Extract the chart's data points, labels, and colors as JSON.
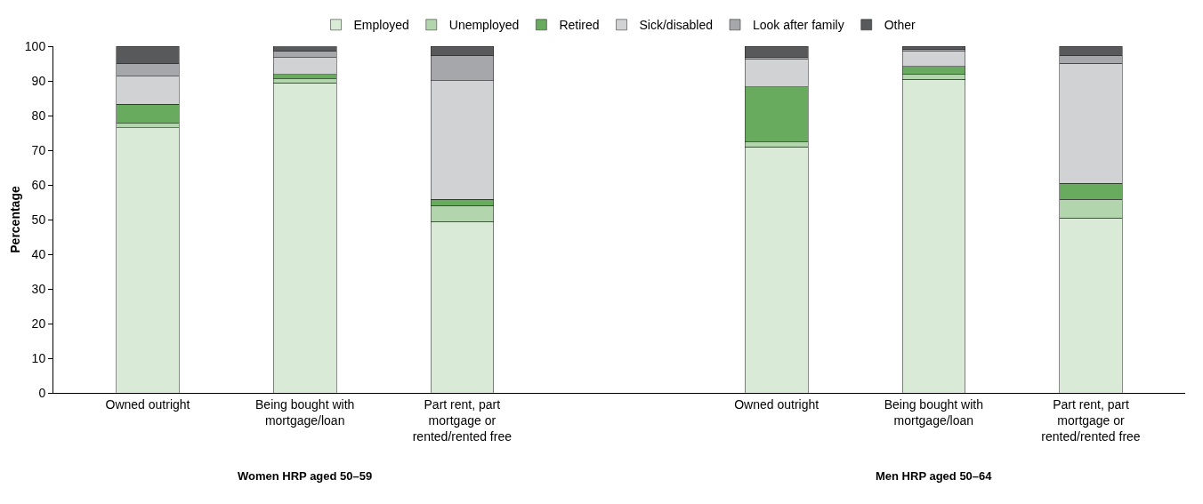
{
  "chart_data": {
    "type": "bar",
    "stacked": true,
    "ylabel": "Percentage",
    "ylim": [
      0,
      100
    ],
    "yticks": [
      0,
      10,
      20,
      30,
      40,
      50,
      60,
      70,
      80,
      90,
      100
    ],
    "grid": false,
    "legend": "top",
    "categories": [
      "Owned outright",
      "Being bought with mortgage/loan",
      "Part rent, part mortgage or rented/rented free",
      null,
      "Owned outright",
      "Being bought with mortgage/loan",
      "Part rent, part mortgage or rented/rented free"
    ],
    "series": [
      {
        "name": "Employed",
        "color": "#d9ead6",
        "values": [
          76.5,
          89.4,
          49.4,
          null,
          71.0,
          90.5,
          50.5
        ]
      },
      {
        "name": "Unemployed",
        "color": "#b3d5ae",
        "values": [
          1.3,
          1.2,
          4.6,
          null,
          1.4,
          1.4,
          5.3
        ]
      },
      {
        "name": "Retired",
        "color": "#68ab5e",
        "values": [
          5.5,
          1.2,
          1.8,
          null,
          15.9,
          2.3,
          4.7
        ]
      },
      {
        "name": "Sick/disabled",
        "color": "#d1d2d4",
        "values": [
          8.0,
          4.9,
          34.3,
          null,
          7.9,
          4.3,
          34.6
        ]
      },
      {
        "name": "Look after family",
        "color": "#a6a7aa",
        "values": [
          3.7,
          2.0,
          7.1,
          null,
          0.6,
          0.5,
          2.1
        ]
      },
      {
        "name": "Other",
        "color": "#58595b",
        "values": [
          5.0,
          1.4,
          2.8,
          null,
          3.2,
          1.0,
          2.8
        ]
      }
    ],
    "annotations": [
      "Women HRP aged 50–59",
      "Men HRP aged 50–64"
    ]
  }
}
